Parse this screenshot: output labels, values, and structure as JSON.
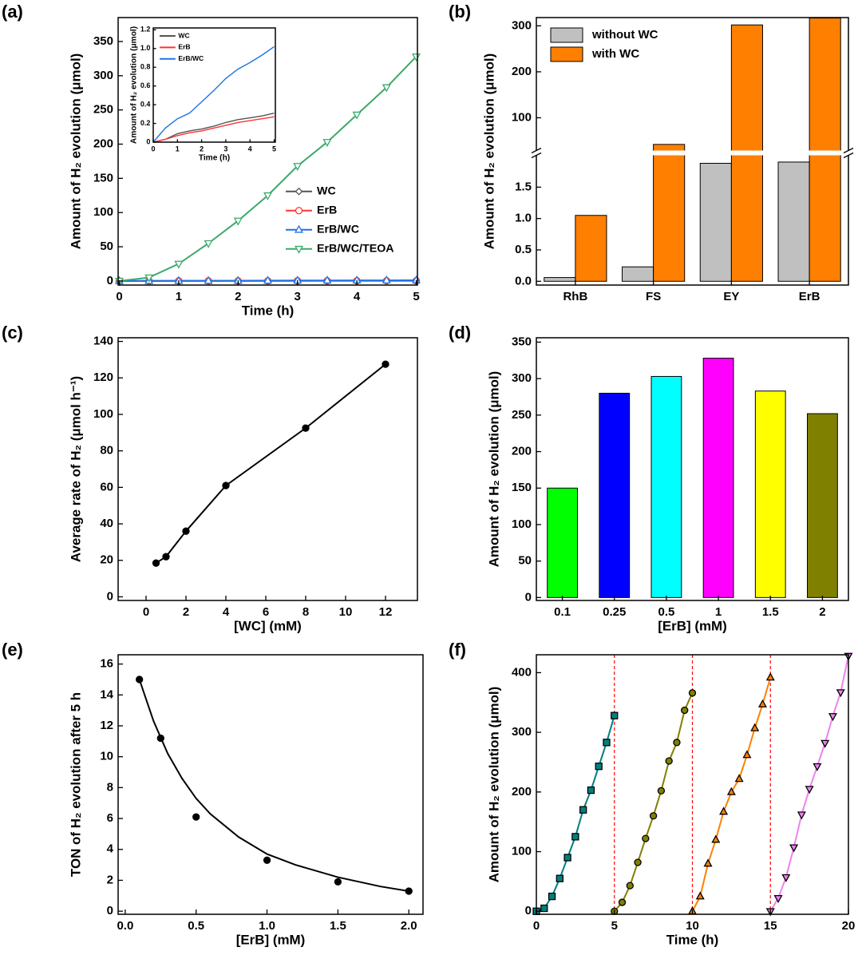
{
  "chart_data": [
    {
      "panel": "(a)",
      "type": "line",
      "xlabel": "Time (h)",
      "ylabel": "Amount of H₂ evolution  (μmol)",
      "x": [
        0,
        0.5,
        1,
        1.5,
        2,
        2.5,
        3,
        3.5,
        4,
        4.5,
        5
      ],
      "xlim": [
        -0.02,
        5.02
      ],
      "xticks": [
        0,
        1,
        2,
        3,
        4,
        5
      ],
      "ylim": [
        -6,
        385
      ],
      "yticks": [
        0,
        50,
        100,
        150,
        200,
        250,
        300,
        350
      ],
      "legend": "center-right",
      "hollow_markers": true,
      "series": [
        {
          "name": "WC",
          "color": "#555555",
          "marker": "diamond",
          "values": [
            0,
            0.03,
            0.09,
            0.12,
            0.14,
            0.17,
            0.21,
            0.24,
            0.26,
            0.28,
            0.31
          ]
        },
        {
          "name": "ErB",
          "color": "#ff3333",
          "marker": "circle",
          "values": [
            0,
            0.03,
            0.07,
            0.1,
            0.12,
            0.15,
            0.18,
            0.21,
            0.23,
            0.25,
            0.27
          ]
        },
        {
          "name": "ErB/WC",
          "color": "#1e73e6",
          "marker": "triangle-up",
          "values": [
            0,
            0.15,
            0.25,
            0.31,
            0.43,
            0.55,
            0.68,
            0.78,
            0.85,
            0.93,
            1.02
          ]
        },
        {
          "name": "ErB/WC/TEOA",
          "color": "#3aa96b",
          "marker": "triangle-down",
          "values": [
            0,
            5,
            25,
            55,
            88,
            125,
            168,
            203,
            243,
            283,
            328
          ]
        }
      ],
      "inset": {
        "type": "line",
        "xlabel": "Time (h)",
        "ylabel": "Amount of H₂ evolution  (μmol)",
        "x": [
          0,
          0.5,
          1,
          1.5,
          2,
          2.5,
          3,
          3.5,
          4,
          4.5,
          5
        ],
        "xlim": [
          0,
          5.05
        ],
        "xticks": [
          0,
          1,
          2,
          3,
          4,
          5
        ],
        "ylim": [
          0,
          1.22
        ],
        "yticks": [
          0,
          {
            "value": 0.2,
            "label": "0.2"
          },
          {
            "value": 0.4,
            "label": "0.4"
          },
          {
            "value": 0.6,
            "label": "0.6"
          },
          {
            "value": 0.8,
            "label": "0.8"
          },
          {
            "value": 1,
            "label": "1.0"
          },
          {
            "value": 1.2,
            "label": "1.2"
          }
        ],
        "legend": "upper-left",
        "series": [
          {
            "name": "WC",
            "color": "#555555",
            "values": [
              0,
              0.03,
              0.09,
              0.12,
              0.14,
              0.17,
              0.21,
              0.24,
              0.26,
              0.28,
              0.31
            ]
          },
          {
            "name": "ErB",
            "color": "#ff3333",
            "values": [
              0,
              0.03,
              0.07,
              0.1,
              0.12,
              0.15,
              0.18,
              0.21,
              0.23,
              0.25,
              0.27
            ]
          },
          {
            "name": "ErB/WC",
            "color": "#1e73e6",
            "values": [
              0,
              0.15,
              0.25,
              0.31,
              0.43,
              0.55,
              0.68,
              0.78,
              0.85,
              0.93,
              1.02
            ]
          }
        ]
      }
    },
    {
      "panel": "(b)",
      "type": "broken-bar",
      "ylabel": "Amount of H₂ evolution  (μmol)",
      "categories": [
        "RhB",
        "FS",
        "EY",
        "ErB"
      ],
      "legend": "upper-left",
      "segments": [
        {
          "ylim": [
            -0.06,
            2.02
          ],
          "yticks": [
            {
              "value": 0,
              "label": "0.0"
            },
            {
              "value": 0.5,
              "label": "0.5"
            },
            {
              "value": 1,
              "label": "1.0"
            },
            {
              "value": 1.5,
              "label": "1.5"
            }
          ]
        },
        {
          "ylim": [
            27,
            318
          ],
          "yticks": [
            100,
            200,
            300
          ]
        }
      ],
      "series": [
        {
          "name": "without WC",
          "color": "#c0c0c0",
          "values": [
            0.06,
            0.23,
            1.88,
            1.9
          ]
        },
        {
          "name": "with WC",
          "color": "#ff7f00",
          "values": [
            1.05,
            42,
            302,
            317
          ]
        }
      ]
    },
    {
      "panel": "(c)",
      "type": "line",
      "xlabel": "[WC] (mM)",
      "ylabel": "Average rate of H₂  (μmol h⁻¹)",
      "xlim": [
        -1.4,
        13.6
      ],
      "xticks": [
        0,
        2,
        4,
        6,
        8,
        10,
        12
      ],
      "ylim": [
        -2,
        142
      ],
      "yticks": [
        0,
        20,
        40,
        60,
        80,
        100,
        120,
        140
      ],
      "series": [
        {
          "color": "#000000",
          "marker": "circle",
          "x": [
            0.5,
            1,
            2,
            4,
            8,
            12
          ],
          "values": [
            18.5,
            22,
            36,
            61,
            92.5,
            127.5
          ]
        }
      ]
    },
    {
      "panel": "(d)",
      "type": "bar",
      "xlabel": "[ErB] (mM)",
      "ylabel": "Amount of H₂ evolution  (μmol)",
      "categories": [
        "0.1",
        "0.25",
        "0.5",
        "1",
        "1.5",
        "2"
      ],
      "values": [
        150,
        280,
        303,
        328,
        283,
        252
      ],
      "colors": [
        "#00ff00",
        "#0000ff",
        "#00ffff",
        "#ff00ff",
        "#ffff00",
        "#808000"
      ],
      "ylim": [
        -4,
        356
      ],
      "yticks": [
        0,
        50,
        100,
        150,
        200,
        250,
        300,
        350
      ]
    },
    {
      "panel": "(e)",
      "type": "scatter",
      "xlabel": "[ErB] (mM)",
      "ylabel": "TON of H₂ evolution after 5 h",
      "xlim": [
        -0.05,
        2.1
      ],
      "xticks": [
        {
          "value": 0,
          "label": "0.0"
        },
        {
          "value": 0.5,
          "label": "0.5"
        },
        {
          "value": 1,
          "label": "1.0"
        },
        {
          "value": 1.5,
          "label": "1.5"
        },
        {
          "value": 2,
          "label": "2.0"
        }
      ],
      "ylim": [
        -0.2,
        16.6
      ],
      "yticks": [
        0,
        2,
        4,
        6,
        8,
        10,
        12,
        14,
        16
      ],
      "x": [
        0.1,
        0.25,
        0.5,
        1,
        1.5,
        2
      ],
      "values": [
        15,
        11.2,
        6.1,
        3.3,
        1.9,
        1.3
      ],
      "color": "#000000",
      "fit": {
        "x": [
          0.1,
          0.2,
          0.3,
          0.4,
          0.5,
          0.6,
          0.8,
          1,
          1.2,
          1.5,
          1.8,
          2
        ],
        "values": [
          15,
          12.3,
          10.2,
          8.6,
          7.3,
          6.3,
          4.8,
          3.7,
          3,
          2.2,
          1.6,
          1.3
        ]
      }
    },
    {
      "panel": "(f)",
      "type": "line",
      "xlabel": "Time (h)",
      "ylabel": "Amount of H₂ evolution  (μmol)",
      "xlim": [
        0,
        20
      ],
      "xticks": [
        0,
        5,
        10,
        15,
        20
      ],
      "ylim": [
        -5,
        430
      ],
      "yticks": [
        0,
        100,
        200,
        300,
        400
      ],
      "vlines": [
        5,
        10,
        15
      ],
      "vline_color": "#ff0000",
      "series": [
        {
          "color": "#008080",
          "marker": "square",
          "x": [
            0,
            0.5,
            1,
            1.5,
            2,
            2.5,
            3,
            3.5,
            4,
            4.5,
            5
          ],
          "values": [
            0,
            5,
            25,
            55,
            90,
            125,
            170,
            203,
            243,
            283,
            328
          ]
        },
        {
          "color": "#808000",
          "marker": "circle",
          "x": [
            5,
            5.5,
            6,
            6.5,
            7,
            7.5,
            8,
            8.5,
            9,
            9.5,
            10
          ],
          "values": [
            0,
            15,
            43,
            82,
            122,
            160,
            202,
            252,
            283,
            337,
            366
          ]
        },
        {
          "color": "#ff8000",
          "marker": "triangle-up",
          "x": [
            10,
            10.5,
            11,
            11.5,
            12,
            12.5,
            13,
            13.5,
            14,
            14.5,
            15
          ],
          "values": [
            0,
            25,
            80,
            120,
            167,
            200,
            222,
            262,
            307,
            347,
            392
          ]
        },
        {
          "color": "#ee82ee",
          "marker": "triangle-down",
          "x": [
            15,
            15.5,
            16,
            16.5,
            17,
            17.5,
            18,
            18.5,
            19,
            19.5,
            20
          ],
          "values": [
            0,
            22,
            57,
            107,
            162,
            205,
            243,
            282,
            327,
            367,
            428
          ]
        }
      ]
    }
  ]
}
